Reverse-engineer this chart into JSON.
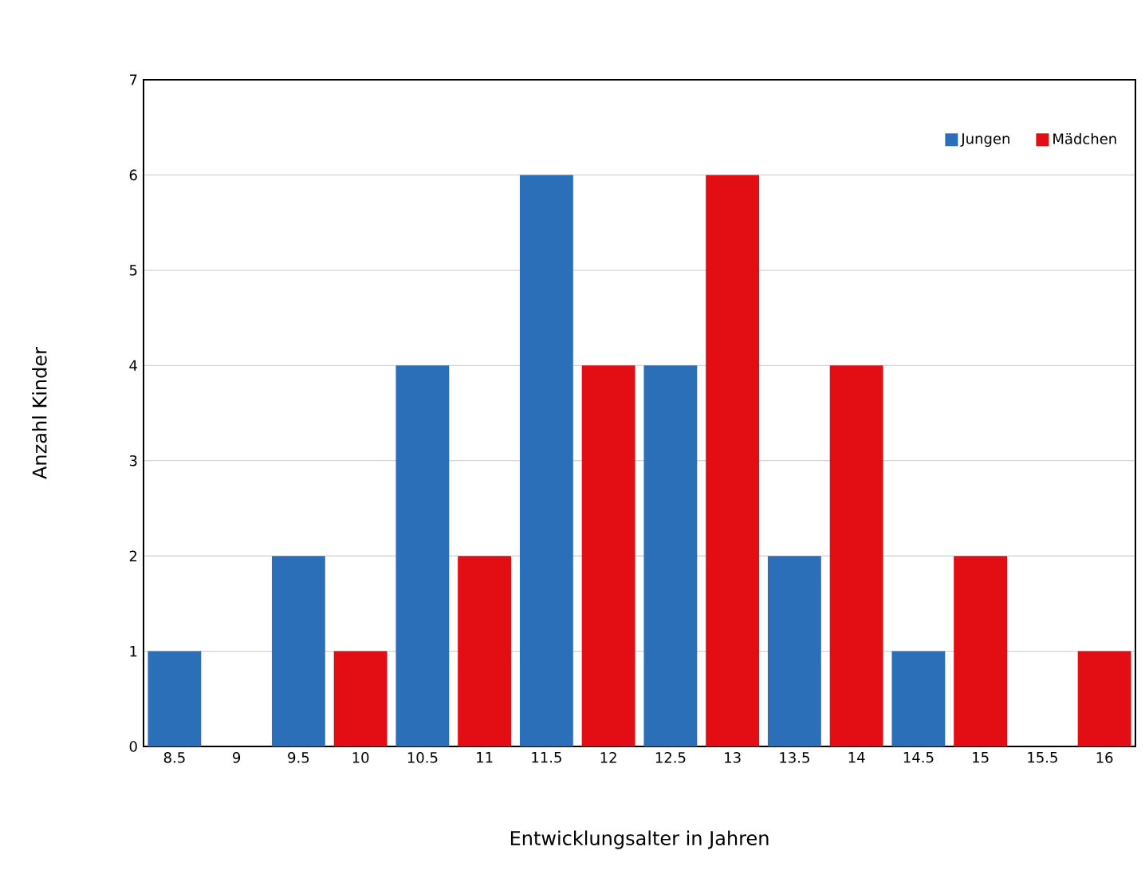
{
  "chart_data": {
    "type": "bar",
    "xlabel": "Entwicklungsalter in Jahren",
    "ylabel": "Anzahl Kinder",
    "categories": [
      "8.5",
      "9",
      "9.5",
      "10",
      "10.5",
      "11",
      "11.5",
      "12",
      "12.5",
      "13",
      "13.5",
      "14",
      "14.5",
      "15",
      "15.5",
      "16"
    ],
    "series": [
      {
        "name": "Jungen",
        "color": "#2a6fb8",
        "values": [
          1,
          null,
          2,
          null,
          4,
          null,
          6,
          null,
          4,
          null,
          2,
          null,
          1,
          null,
          0,
          null
        ]
      },
      {
        "name": "Mädchen",
        "color": "#e30d14",
        "values": [
          null,
          0,
          null,
          1,
          null,
          2,
          null,
          4,
          null,
          6,
          null,
          4,
          null,
          2,
          null,
          1
        ]
      }
    ],
    "ylim": [
      0,
      7
    ],
    "yticks": [
      0,
      1,
      2,
      3,
      4,
      5,
      6,
      7
    ],
    "grid": "y",
    "legend": "top right"
  }
}
